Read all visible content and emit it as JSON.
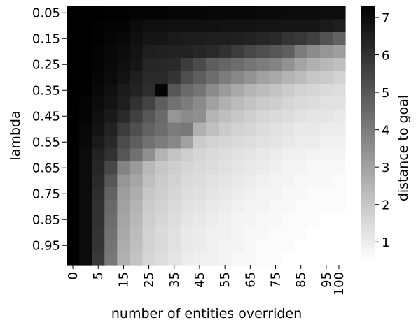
{
  "chart_data": {
    "type": "heatmap",
    "xlabel": "number of entities overriden",
    "ylabel": "lambda",
    "colorbar_label": "distance to goal",
    "colormap": [
      "#ffffff",
      "#000000"
    ],
    "vmin": 0.5,
    "vmax": 7.3,
    "colorbar_ticks": [
      1,
      2,
      3,
      4,
      5,
      6,
      7
    ],
    "x_tick_labels": [
      "0",
      "5",
      "15",
      "25",
      "35",
      "45",
      "55",
      "65",
      "75",
      "85",
      "95",
      "100"
    ],
    "y_tick_labels": [
      "0.05",
      "0.15",
      "0.25",
      "0.35",
      "0.45",
      "0.55",
      "0.65",
      "0.75",
      "0.85",
      "0.95"
    ],
    "x": [
      0,
      2.5,
      5,
      10,
      15,
      20,
      25,
      30,
      35,
      40,
      45,
      50,
      55,
      60,
      65,
      70,
      75,
      80,
      85,
      90,
      95,
      100
    ],
    "y": [
      0.05,
      0.1,
      0.15,
      0.2,
      0.25,
      0.3,
      0.35,
      0.4,
      0.45,
      0.5,
      0.55,
      0.6,
      0.65,
      0.7,
      0.75,
      0.8,
      0.85,
      0.9,
      0.95,
      1.0
    ],
    "values": [
      [
        7.3,
        7.3,
        7.3,
        7.25,
        7.25,
        7.2,
        7.2,
        7.2,
        7.15,
        7.15,
        7.15,
        7.1,
        7.1,
        7.1,
        7.1,
        7.05,
        7.05,
        7.0,
        7.0,
        7.0,
        6.95,
        6.95
      ],
      [
        7.3,
        7.3,
        7.25,
        7.2,
        7.2,
        7.0,
        6.9,
        6.9,
        6.85,
        6.85,
        6.85,
        6.85,
        6.8,
        6.8,
        6.8,
        6.75,
        6.75,
        6.7,
        6.7,
        6.7,
        6.6,
        6.5
      ],
      [
        7.3,
        7.3,
        7.25,
        7.15,
        7.1,
        6.9,
        6.7,
        6.7,
        6.6,
        6.55,
        6.55,
        6.5,
        6.5,
        6.45,
        6.4,
        6.3,
        6.2,
        5.9,
        5.8,
        5.6,
        5.1,
        4.7
      ],
      [
        7.3,
        7.3,
        7.2,
        7.1,
        7.0,
        6.8,
        6.5,
        6.45,
        6.4,
        6.4,
        6.3,
        6.2,
        6.0,
        5.7,
        5.4,
        5.2,
        5.0,
        4.8,
        4.0,
        3.6,
        3.3,
        3.1
      ],
      [
        7.3,
        7.3,
        7.2,
        7.05,
        6.9,
        6.7,
        6.3,
        6.25,
        6.2,
        5.7,
        5.3,
        4.8,
        4.6,
        4.4,
        4.2,
        4.0,
        3.8,
        3.4,
        2.9,
        2.6,
        2.4,
        2.2
      ],
      [
        7.3,
        7.3,
        7.15,
        7.0,
        6.8,
        6.5,
        6.2,
        6.2,
        5.9,
        5.2,
        4.8,
        4.4,
        4.0,
        3.7,
        3.4,
        3.0,
        2.8,
        2.5,
        2.3,
        2.0,
        1.9,
        1.7
      ],
      [
        7.3,
        7.3,
        7.1,
        6.9,
        6.6,
        6.4,
        6.1,
        7.2,
        5.0,
        4.5,
        4.2,
        3.6,
        3.2,
        2.8,
        2.5,
        2.3,
        2.1,
        1.9,
        1.7,
        1.6,
        1.5,
        1.4
      ],
      [
        7.3,
        7.2,
        7.0,
        6.8,
        6.5,
        6.0,
        5.5,
        4.8,
        4.3,
        4.0,
        3.6,
        3.0,
        2.6,
        2.3,
        2.1,
        1.9,
        1.8,
        1.6,
        1.5,
        1.4,
        1.3,
        1.3
      ],
      [
        7.3,
        7.2,
        6.9,
        6.6,
        6.2,
        5.6,
        5.0,
        4.5,
        3.3,
        3.6,
        3.5,
        2.5,
        2.2,
        2.0,
        1.8,
        1.6,
        1.5,
        1.4,
        1.3,
        1.2,
        1.2,
        1.1
      ],
      [
        7.3,
        7.1,
        6.8,
        6.4,
        5.7,
        5.2,
        4.7,
        4.4,
        4.0,
        4.1,
        2.6,
        2.2,
        1.9,
        1.7,
        1.6,
        1.4,
        1.3,
        1.2,
        1.1,
        1.1,
        1.0,
        1.0
      ],
      [
        7.3,
        7.1,
        6.6,
        6.2,
        5.3,
        4.8,
        4.3,
        4.0,
        3.7,
        3.0,
        1.9,
        1.7,
        1.6,
        1.5,
        1.4,
        1.3,
        1.2,
        1.1,
        1.0,
        1.0,
        0.9,
        0.9
      ],
      [
        7.3,
        7.0,
        6.4,
        6.0,
        5.0,
        4.3,
        3.5,
        2.5,
        2.1,
        1.8,
        1.6,
        1.5,
        1.4,
        1.3,
        1.2,
        1.1,
        1.0,
        0.9,
        0.9,
        0.8,
        0.8,
        0.8
      ],
      [
        7.3,
        7.0,
        6.3,
        5.4,
        3.8,
        3.2,
        2.4,
        2.0,
        1.8,
        1.6,
        1.5,
        1.4,
        1.3,
        1.2,
        1.1,
        1.0,
        0.9,
        0.8,
        0.8,
        0.7,
        0.7,
        0.7
      ],
      [
        7.3,
        7.0,
        6.2,
        5.0,
        3.3,
        2.9,
        2.2,
        1.9,
        1.7,
        1.5,
        1.4,
        1.3,
        1.2,
        1.1,
        1.0,
        0.9,
        0.8,
        0.8,
        0.7,
        0.7,
        0.7,
        0.6
      ],
      [
        7.3,
        7.0,
        6.1,
        4.7,
        3.1,
        2.7,
        2.0,
        1.8,
        1.6,
        1.4,
        1.3,
        1.2,
        1.1,
        1.0,
        0.9,
        0.8,
        0.8,
        0.7,
        0.7,
        0.6,
        0.6,
        0.6
      ],
      [
        7.3,
        7.0,
        6.0,
        4.5,
        3.0,
        2.5,
        1.9,
        1.7,
        1.5,
        1.3,
        1.2,
        1.1,
        1.0,
        0.9,
        0.8,
        0.8,
        0.7,
        0.7,
        0.6,
        0.6,
        0.6,
        0.6
      ],
      [
        7.3,
        7.0,
        6.0,
        4.4,
        2.9,
        2.4,
        1.8,
        1.6,
        1.4,
        1.2,
        1.1,
        1.0,
        0.9,
        0.8,
        0.8,
        0.7,
        0.7,
        0.6,
        0.6,
        0.6,
        0.5,
        0.5
      ],
      [
        7.3,
        7.0,
        5.9,
        4.3,
        2.8,
        2.3,
        1.7,
        1.5,
        1.3,
        1.1,
        1.0,
        0.9,
        0.9,
        0.8,
        0.7,
        0.7,
        0.6,
        0.6,
        0.6,
        0.5,
        0.5,
        0.5
      ],
      [
        7.3,
        7.0,
        5.9,
        4.2,
        2.7,
        2.2,
        1.7,
        1.5,
        1.3,
        1.1,
        1.0,
        0.9,
        0.8,
        0.8,
        0.7,
        0.6,
        0.6,
        0.6,
        0.5,
        0.5,
        0.5,
        0.5
      ],
      [
        7.3,
        7.0,
        5.8,
        4.1,
        2.6,
        2.1,
        1.6,
        1.4,
        1.2,
        1.0,
        0.9,
        0.9,
        0.8,
        0.7,
        0.7,
        0.6,
        0.6,
        0.5,
        0.5,
        0.5,
        0.5,
        0.5
      ]
    ]
  }
}
